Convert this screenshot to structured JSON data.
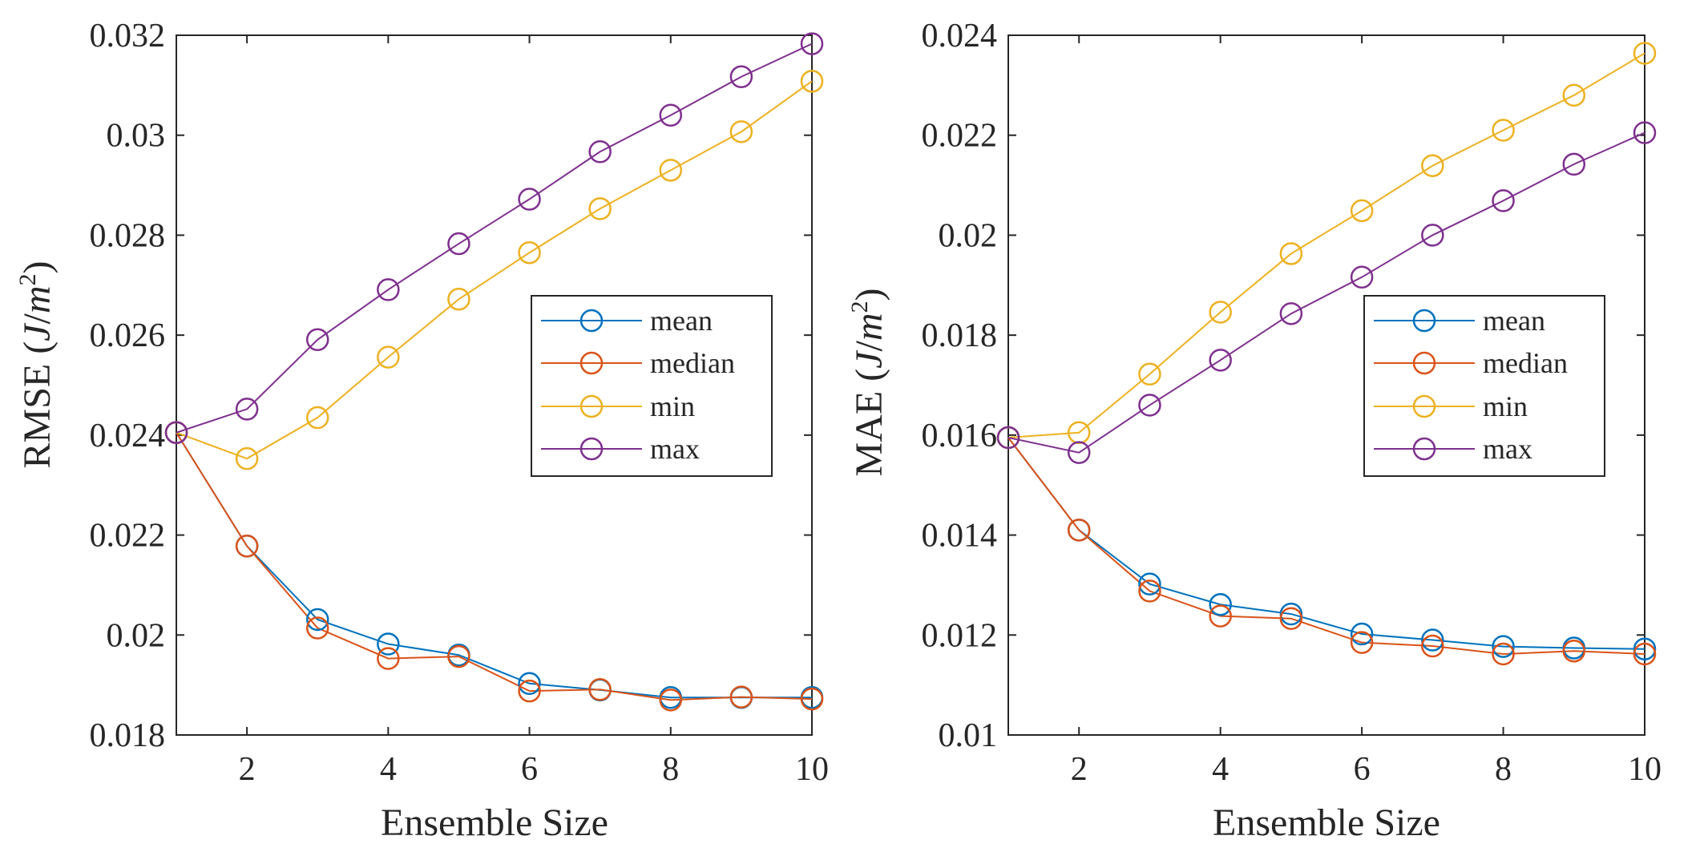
{
  "colors": {
    "mean": "#0072BD",
    "median": "#D95319",
    "min": "#EDB120",
    "max": "#7E2F8E",
    "axis": "#262626",
    "background": "#ffffff"
  },
  "chart_data": [
    {
      "type": "line",
      "title": "",
      "xlabel": "Ensemble Size",
      "ylabel": "RMSE (J/m²)",
      "ylabel_main": "RMSE",
      "ylabel_unit_open": " (",
      "ylabel_unit_J": "J",
      "ylabel_unit_slash": "/",
      "ylabel_unit_m": "m",
      "ylabel_unit_exp": "2",
      "ylabel_unit_close": ")",
      "xlim": [
        1,
        10
      ],
      "ylim": [
        0.018,
        0.032
      ],
      "xticks": [
        2,
        4,
        6,
        8,
        10
      ],
      "xtick_labels": [
        "2",
        "4",
        "6",
        "8",
        "10"
      ],
      "yticks": [
        0.018,
        0.02,
        0.022,
        0.024,
        0.026,
        0.028,
        0.03,
        0.032
      ],
      "ytick_labels": [
        "0.018",
        "0.02",
        "0.022",
        "0.024",
        "0.026",
        "0.028",
        "0.03",
        "0.032"
      ],
      "legend_placement": "right-center",
      "grid": false,
      "x": [
        1,
        2,
        3,
        4,
        5,
        6,
        7,
        8,
        9,
        10
      ],
      "series": [
        {
          "name": "mean",
          "key": "mean",
          "values": [
            0.02405,
            0.02178,
            0.02031,
            0.01982,
            0.0196,
            0.01903,
            0.0189,
            0.01875,
            0.01875,
            0.01875
          ]
        },
        {
          "name": "median",
          "key": "median",
          "values": [
            0.02405,
            0.02178,
            0.02014,
            0.01953,
            0.01957,
            0.01888,
            0.01891,
            0.0187,
            0.01876,
            0.01872
          ]
        },
        {
          "name": "min",
          "key": "min",
          "values": [
            0.02405,
            0.02353,
            0.02435,
            0.02556,
            0.02672,
            0.02765,
            0.02853,
            0.0293,
            0.03007,
            0.03108
          ]
        },
        {
          "name": "max",
          "key": "max",
          "values": [
            0.02405,
            0.02452,
            0.02591,
            0.02691,
            0.02783,
            0.02872,
            0.02967,
            0.0304,
            0.03117,
            0.03183
          ]
        }
      ]
    },
    {
      "type": "line",
      "title": "",
      "xlabel": "Ensemble Size",
      "ylabel": "MAE (J/m²)",
      "ylabel_main": "MAE",
      "ylabel_unit_open": " (",
      "ylabel_unit_J": "J",
      "ylabel_unit_slash": "/",
      "ylabel_unit_m": "m",
      "ylabel_unit_exp": "2",
      "ylabel_unit_close": ")",
      "xlim": [
        1,
        10
      ],
      "ylim": [
        0.01,
        0.024
      ],
      "xticks": [
        2,
        4,
        6,
        8,
        10
      ],
      "xtick_labels": [
        "2",
        "4",
        "6",
        "8",
        "10"
      ],
      "yticks": [
        0.01,
        0.012,
        0.014,
        0.016,
        0.018,
        0.02,
        0.022,
        0.024
      ],
      "ytick_labels": [
        "0.01",
        "0.012",
        "0.014",
        "0.016",
        "0.018",
        "0.02",
        "0.022",
        "0.024"
      ],
      "legend_placement": "right-center",
      "grid": false,
      "x": [
        1,
        2,
        3,
        4,
        5,
        6,
        7,
        8,
        9,
        10
      ],
      "series": [
        {
          "name": "mean",
          "key": "mean",
          "values": [
            0.01595,
            0.0141,
            0.01302,
            0.01261,
            0.01242,
            0.01202,
            0.0119,
            0.01177,
            0.01174,
            0.01172
          ]
        },
        {
          "name": "median",
          "key": "median",
          "values": [
            0.01595,
            0.0141,
            0.01288,
            0.01238,
            0.01233,
            0.01185,
            0.01178,
            0.01162,
            0.01168,
            0.01162
          ]
        },
        {
          "name": "min",
          "key": "min",
          "values": [
            0.01595,
            0.01605,
            0.01722,
            0.01846,
            0.01963,
            0.02049,
            0.02139,
            0.0221,
            0.0228,
            0.02364
          ]
        },
        {
          "name": "max",
          "key": "max",
          "values": [
            0.01595,
            0.01565,
            0.0166,
            0.0175,
            0.01843,
            0.01916,
            0.02,
            0.02069,
            0.02142,
            0.02205
          ]
        }
      ]
    }
  ]
}
